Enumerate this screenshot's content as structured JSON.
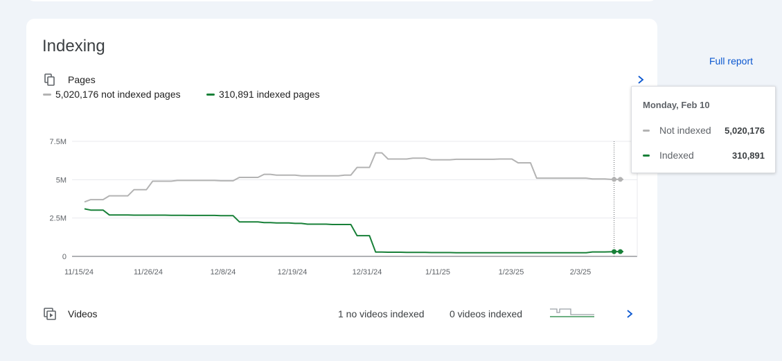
{
  "section": {
    "title": "Indexing"
  },
  "pages": {
    "label": "Pages",
    "full_report": "Full report",
    "legend": {
      "not_indexed": "5,020,176 not indexed pages",
      "indexed": "310,891 indexed pages"
    }
  },
  "colors": {
    "not_indexed": "#b3b3b3",
    "indexed": "#188038",
    "link": "#0b57d0"
  },
  "tooltip": {
    "date": "Monday, Feb 10",
    "rows": [
      {
        "label": "Not indexed",
        "value": "5,020,176"
      },
      {
        "label": "Indexed",
        "value": "310,891"
      }
    ]
  },
  "videos": {
    "label": "Videos",
    "no_videos_indexed": "1 no videos indexed",
    "videos_indexed": "0 videos indexed"
  },
  "chart_data": {
    "type": "line",
    "x_ticks": [
      "11/15/24",
      "11/26/24",
      "12/8/24",
      "12/19/24",
      "12/31/24",
      "1/11/25",
      "1/23/25",
      "2/3/25"
    ],
    "y_ticks": [
      "0",
      "2.5M",
      "5M",
      "7.5M"
    ],
    "ylim": [
      0,
      7500000
    ],
    "grid": true,
    "x_unit": "days since 11/15/24",
    "series": [
      {
        "name": "Not indexed",
        "x": [
          0,
          1,
          2,
          3,
          4,
          5,
          6,
          7,
          8,
          9,
          10,
          11,
          12,
          13,
          14,
          15,
          16,
          17,
          18,
          19,
          20,
          21,
          22,
          23,
          24,
          25,
          26,
          27,
          28,
          29,
          30,
          31,
          32,
          33,
          34,
          35,
          36,
          37,
          38,
          39,
          40,
          41,
          42,
          43,
          44,
          45,
          46,
          47,
          48,
          49,
          50,
          51,
          52,
          53,
          54,
          55,
          56,
          57,
          58,
          59,
          60,
          61,
          62,
          63,
          64,
          65,
          66,
          67,
          68,
          69,
          70,
          71,
          72,
          73,
          74,
          75,
          76,
          77,
          78,
          79,
          80,
          81,
          82,
          83,
          84,
          85,
          86,
          87
        ],
        "values": [
          3550000,
          3700000,
          3700000,
          3700000,
          3950000,
          3950000,
          3950000,
          3950000,
          4350000,
          4350000,
          4350000,
          4900000,
          4900000,
          4900000,
          4900000,
          4950000,
          4950000,
          4950000,
          4950000,
          4950000,
          4950000,
          4950000,
          4930000,
          4930000,
          4930000,
          5150000,
          5150000,
          5150000,
          5150000,
          5350000,
          5350000,
          5300000,
          5300000,
          5300000,
          5300000,
          5250000,
          5250000,
          5250000,
          5250000,
          5250000,
          5250000,
          5250000,
          5300000,
          5300000,
          5800000,
          5800000,
          5800000,
          6750000,
          6750000,
          6350000,
          6350000,
          6350000,
          6350000,
          6400000,
          6400000,
          6400000,
          6300000,
          6300000,
          6300000,
          6300000,
          6330000,
          6330000,
          6330000,
          6330000,
          6330000,
          6330000,
          6330000,
          6350000,
          6350000,
          6350000,
          6100000,
          6100000,
          6100000,
          5100000,
          5100000,
          5100000,
          5100000,
          5100000,
          5100000,
          5100000,
          5100000,
          5100000,
          5050000,
          5050000,
          5050000,
          5020176,
          5020176,
          5020176
        ]
      },
      {
        "name": "Indexed",
        "x": [
          0,
          1,
          2,
          3,
          4,
          5,
          6,
          7,
          8,
          9,
          10,
          11,
          12,
          13,
          14,
          15,
          16,
          17,
          18,
          19,
          20,
          21,
          22,
          23,
          24,
          25,
          26,
          27,
          28,
          29,
          30,
          31,
          32,
          33,
          34,
          35,
          36,
          37,
          38,
          39,
          40,
          41,
          42,
          43,
          44,
          45,
          46,
          47,
          48,
          49,
          50,
          51,
          52,
          53,
          54,
          55,
          56,
          57,
          58,
          59,
          60,
          61,
          62,
          63,
          64,
          65,
          66,
          67,
          68,
          69,
          70,
          71,
          72,
          73,
          74,
          75,
          76,
          77,
          78,
          79,
          80,
          81,
          82,
          83,
          84,
          85,
          86,
          87
        ],
        "values": [
          3100000,
          3020000,
          3020000,
          3020000,
          2700000,
          2700000,
          2700000,
          2700000,
          2690000,
          2690000,
          2690000,
          2690000,
          2690000,
          2690000,
          2680000,
          2680000,
          2680000,
          2670000,
          2670000,
          2670000,
          2670000,
          2670000,
          2650000,
          2650000,
          2650000,
          2250000,
          2250000,
          2250000,
          2250000,
          2200000,
          2200000,
          2180000,
          2180000,
          2180000,
          2150000,
          2150000,
          2100000,
          2100000,
          2100000,
          2100000,
          2080000,
          2080000,
          2080000,
          2080000,
          1350000,
          1350000,
          1350000,
          280000,
          280000,
          270000,
          270000,
          270000,
          260000,
          260000,
          260000,
          260000,
          250000,
          250000,
          250000,
          250000,
          240000,
          240000,
          240000,
          240000,
          240000,
          240000,
          240000,
          240000,
          240000,
          240000,
          240000,
          240000,
          240000,
          240000,
          240000,
          240000,
          240000,
          240000,
          240000,
          240000,
          240000,
          240000,
          290000,
          290000,
          290000,
          300000,
          310891,
          310891
        ]
      }
    ]
  }
}
